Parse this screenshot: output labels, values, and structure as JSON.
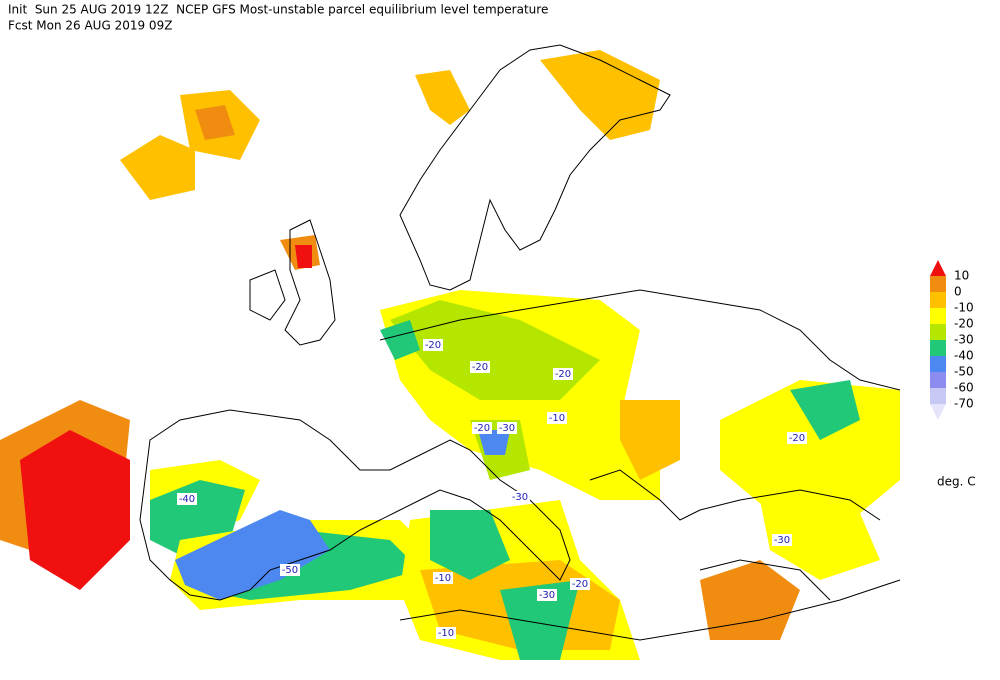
{
  "header": {
    "line1": "Init  Sun 25 AUG 2019 12Z  NCEP GFS Most-unstable parcel equilibrium level temperature",
    "line2": "Fcst Mon 26 AUG 2019 09Z"
  },
  "legend": {
    "labels": [
      "10",
      "0",
      "-10",
      "-20",
      "-30",
      "-40",
      "-50",
      "-60",
      "-70"
    ],
    "colors": [
      "#f01010",
      "#f08c10",
      "#ffc000",
      "#ffff00",
      "#b4e600",
      "#20c878",
      "#4c88f0",
      "#8c8cf0",
      "#c8c8f4",
      "#e4e4fa"
    ],
    "unit": "deg. C"
  },
  "contour_labels": [
    "-20",
    "-20",
    "-20",
    "-10",
    "-20",
    "-30",
    "-30",
    "-40",
    "-50",
    "-10",
    "-30",
    "-20",
    "-10",
    "-20",
    "-30"
  ]
}
